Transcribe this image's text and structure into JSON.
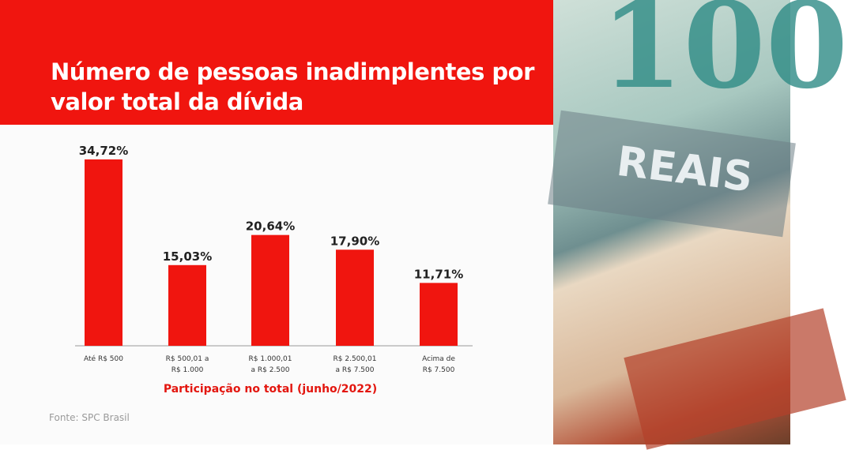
{
  "chart_data": {
    "type": "bar",
    "title": "Número de pessoas inadimplentes por valor total da dívida",
    "categories": [
      [
        "Até R$ 500"
      ],
      [
        "R$ 500,01 a",
        "R$ 1.000"
      ],
      [
        "R$ 1.000,01",
        "a R$ 2.500"
      ],
      [
        "R$ 2.500,01",
        "a R$ 7.500"
      ],
      [
        "Acima de",
        "R$ 7.500"
      ]
    ],
    "values": [
      34.72,
      15.03,
      20.64,
      17.9,
      11.71
    ],
    "value_labels": [
      "34,72%",
      "15,03%",
      "20,64%",
      "17,90%",
      "11,71%"
    ],
    "xlabel": "Participação no total (junho/2022)",
    "ylabel": "",
    "ylim": [
      0,
      36
    ],
    "grid": false,
    "bar_color": "#f0150f"
  },
  "source": "Fonte:  SPC Brasil",
  "photo": {
    "note_value": "100",
    "note_word": "REAIS"
  }
}
